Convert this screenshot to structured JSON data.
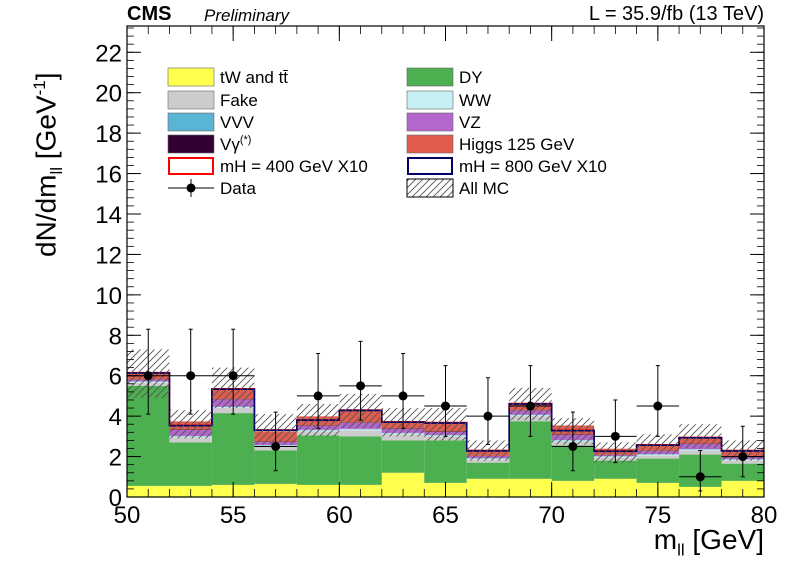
{
  "header": {
    "experiment": "CMS",
    "status": "Preliminary",
    "lumi": "L = 35.9/fb (13 TeV)"
  },
  "chart_data": {
    "type": "bar",
    "title": "",
    "xlabel": "m_ll [GeV]",
    "ylabel": "dN/dm_ll [GeV^-1]",
    "xlim": [
      50,
      80
    ],
    "ylim": [
      0,
      23.3
    ],
    "x_ticks": [
      50,
      55,
      60,
      65,
      70,
      75,
      80
    ],
    "y_ticks": [
      0,
      2,
      4,
      6,
      8,
      10,
      12,
      14,
      16,
      18,
      20,
      22
    ],
    "bin_edges": [
      50,
      52,
      54,
      56,
      58,
      60,
      62,
      64,
      66,
      68,
      70,
      72,
      74,
      76,
      78,
      80
    ],
    "stack": [
      {
        "name": "tW and tt̄",
        "color": "#ffff4d",
        "values": [
          0.55,
          0.55,
          0.6,
          0.65,
          0.6,
          0.6,
          1.2,
          0.7,
          0.9,
          0.9,
          0.8,
          0.9,
          0.7,
          0.5,
          0.8
        ]
      },
      {
        "name": "DY",
        "color": "#4caf50",
        "values": [
          4.95,
          2.15,
          3.55,
          1.65,
          2.45,
          2.4,
          1.6,
          2.1,
          0.8,
          2.85,
          1.75,
          0.9,
          1.2,
          1.6,
          0.85
        ]
      },
      {
        "name": "Fake",
        "color": "#cccccc",
        "values": [
          0.15,
          0.25,
          0.25,
          0.2,
          0.2,
          0.3,
          0.3,
          0.2,
          0.15,
          0.25,
          0.2,
          0.15,
          0.15,
          0.2,
          0.15
        ]
      },
      {
        "name": "WW",
        "color": "#c6f0f3",
        "values": [
          0.05,
          0.05,
          0.05,
          0.05,
          0.05,
          0.05,
          0.05,
          0.05,
          0.05,
          0.05,
          0.05,
          0.05,
          0.05,
          0.05,
          0.05
        ]
      },
      {
        "name": "VVV",
        "color": "#5ab4d4",
        "values": [
          0.02,
          0.02,
          0.02,
          0.02,
          0.02,
          0.02,
          0.02,
          0.02,
          0.02,
          0.02,
          0.02,
          0.02,
          0.02,
          0.02,
          0.02
        ]
      },
      {
        "name": "VZ",
        "color": "#b366cc",
        "values": [
          0.08,
          0.3,
          0.35,
          0.15,
          0.2,
          0.3,
          0.2,
          0.15,
          0.1,
          0.2,
          0.25,
          0.05,
          0.15,
          0.25,
          0.1
        ]
      },
      {
        "name": "Vγ(*)",
        "color": "#330033",
        "values": [
          0.02,
          0.02,
          0.02,
          0.02,
          0.02,
          0.02,
          0.02,
          0.02,
          0.02,
          0.02,
          0.02,
          0.02,
          0.02,
          0.02,
          0.02
        ]
      },
      {
        "name": "Higgs 125 GeV",
        "color": "#e05c4d",
        "values": [
          0.3,
          0.4,
          0.55,
          0.5,
          0.45,
          0.6,
          0.3,
          0.4,
          0.3,
          0.3,
          0.45,
          0.3,
          0.3,
          0.3,
          0.3
        ]
      }
    ],
    "signals": [
      {
        "name": "mH = 400 GeV X10",
        "color": "#ff0000",
        "values": [
          6.15,
          3.55,
          5.35,
          3.32,
          3.82,
          4.3,
          3.72,
          3.68,
          2.3,
          4.62,
          3.3,
          2.28,
          2.58,
          2.95,
          2.3
        ]
      },
      {
        "name": "mH = 800 GeV X10",
        "color": "#000066",
        "values": [
          6.13,
          3.53,
          5.33,
          3.3,
          3.8,
          4.28,
          3.7,
          3.66,
          2.28,
          4.6,
          3.28,
          2.26,
          2.56,
          2.93,
          2.28
        ]
      }
    ],
    "uncertainty": {
      "name": "All MC",
      "up": [
        7.3,
        4.3,
        6.4,
        4.1,
        4.6,
        5.1,
        4.4,
        4.4,
        2.8,
        5.4,
        3.9,
        2.7,
        3.1,
        3.6,
        2.8
      ],
      "down": [
        4.9,
        2.9,
        4.4,
        2.6,
        3.0,
        3.4,
        3.0,
        2.8,
        1.8,
        3.8,
        2.6,
        1.7,
        2.1,
        2.4,
        1.8
      ]
    },
    "data": {
      "name": "Data",
      "x": [
        51,
        53,
        55,
        57,
        59,
        61,
        63,
        65,
        67,
        69,
        71,
        73,
        75,
        77,
        79
      ],
      "y": [
        6,
        6,
        6,
        2.5,
        5,
        5.5,
        5,
        4.5,
        4,
        4.5,
        2.5,
        3,
        4.5,
        1,
        2
      ],
      "err_up": [
        2.3,
        2.3,
        2.3,
        1.7,
        2.1,
        2.2,
        2.1,
        2.0,
        1.9,
        2.0,
        1.7,
        1.8,
        2.0,
        1.3,
        1.5
      ],
      "err_down": [
        1.9,
        1.9,
        1.9,
        1.2,
        1.6,
        1.7,
        1.6,
        1.5,
        1.4,
        1.5,
        1.2,
        1.3,
        1.5,
        0.7,
        1.0
      ]
    },
    "legend": {
      "placement": "top-left",
      "col1": [
        "tW and tt̄",
        "Fake",
        "VVV",
        "Vγ(*)",
        "mH = 400 GeV X10",
        "Data"
      ],
      "col2": [
        "DY",
        "WW",
        "VZ",
        "Higgs 125 GeV",
        "mH = 800 GeV X10",
        "All MC"
      ]
    }
  }
}
